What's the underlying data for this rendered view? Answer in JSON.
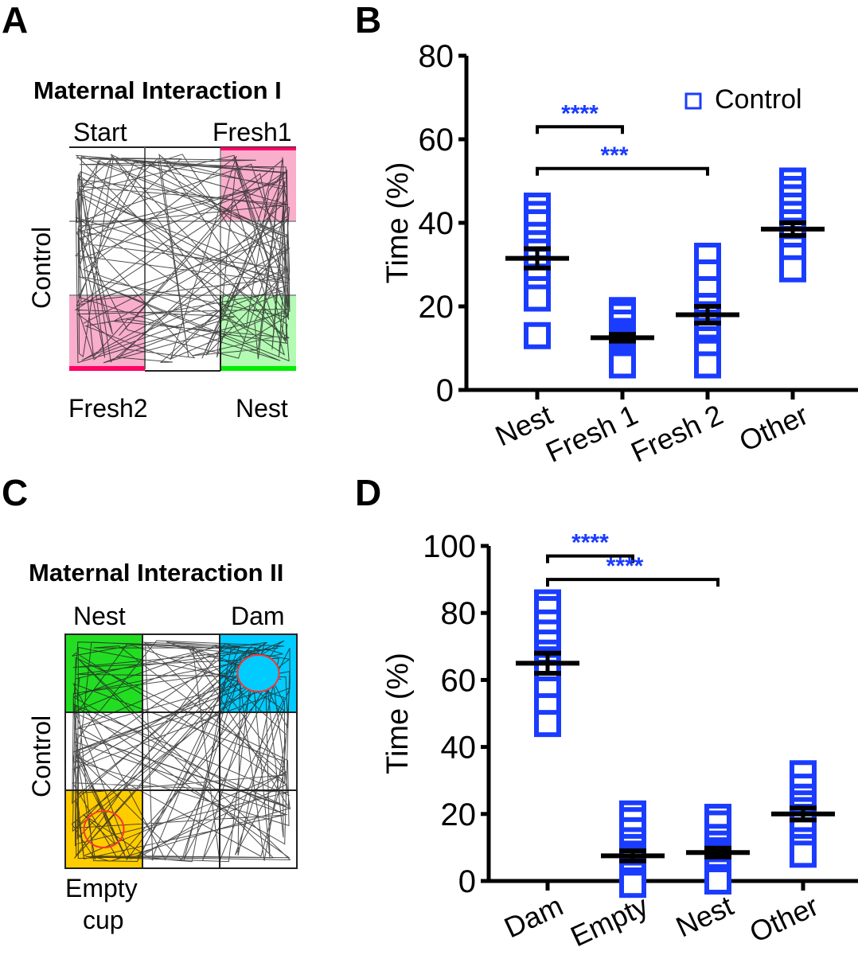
{
  "panels": {
    "A": {
      "letter": "A",
      "title": "Maternal Interaction I",
      "row_label": "Control",
      "zones": {
        "top_left": "Start",
        "top_right": "Fresh1",
        "bottom_left": "Fresh2",
        "bottom_right": "Nest"
      },
      "colors": {
        "fresh": "#f9aecb",
        "fresh_edge": "#ff0066",
        "nest": "#b3fbb3",
        "nest_edge": "#00ee00"
      }
    },
    "C": {
      "letter": "C",
      "title": "Maternal Interaction II",
      "row_label": "Control",
      "zones": {
        "top_left": "Nest",
        "top_right": "Dam",
        "bottom_left_line1": "Empty",
        "bottom_left_line2": "cup"
      },
      "colors": {
        "nest": "#22dd22",
        "dam": "#00ccff",
        "empty": "#ffcc00",
        "cup_ring": "#ff3333"
      }
    },
    "B": {
      "letter": "B"
    },
    "D": {
      "letter": "D"
    }
  },
  "chart_data": [
    {
      "id": "B",
      "type": "scatter",
      "title": "",
      "xlabel": "",
      "ylabel": "Time (%)",
      "ylim": [
        0,
        80
      ],
      "yticks": [
        0,
        20,
        40,
        60,
        80
      ],
      "categories": [
        "Nest",
        "Fresh 1",
        "Fresh 2",
        "Other"
      ],
      "legend": {
        "label": "Control",
        "position": "top-right"
      },
      "series": [
        {
          "name": "Control",
          "color": "#1a3cff",
          "points": [
            [
              44,
              42,
              40,
              37,
              35,
              33,
              31,
              29,
              27,
              24,
              22,
              13
            ],
            [
              19,
              18,
              16,
              14,
              13,
              12,
              12,
              11,
              10,
              8,
              7,
              6
            ],
            [
              32,
              28,
              24,
              20,
              18,
              16,
              14,
              12,
              10,
              9,
              6
            ],
            [
              50,
              48,
              46,
              44,
              42,
              40,
              38,
              36,
              34,
              32,
              29
            ]
          ],
          "mean": [
            31.5,
            12.5,
            18,
            38.5
          ],
          "sem": [
            2.3,
            0.8,
            2.0,
            1.5
          ]
        }
      ],
      "significance": [
        {
          "from": "Nest",
          "to": "Fresh 1",
          "label": "****",
          "level": 63
        },
        {
          "from": "Nest",
          "to": "Fresh 2",
          "label": "***",
          "level": 53
        }
      ]
    },
    {
      "id": "D",
      "type": "scatter",
      "title": "",
      "xlabel": "",
      "ylabel": "Time (%)",
      "ylim": [
        0,
        100
      ],
      "yticks": [
        0,
        20,
        40,
        60,
        80,
        100
      ],
      "categories": [
        "Dam",
        "Empty",
        "Nest",
        "Other"
      ],
      "series": [
        {
          "name": "Control",
          "color": "#1a3cff",
          "points": [
            [
              83,
              81,
              77,
              74,
              71,
              68,
              66,
              64,
              62,
              57,
              52,
              47
            ],
            [
              20,
              18,
              15,
              12,
              10,
              8,
              7,
              6,
              4,
              2,
              0,
              -1
            ],
            [
              19,
              17,
              13,
              11,
              9,
              8,
              7,
              5,
              3,
              1,
              0
            ],
            [
              32,
              28,
              25,
              23,
              21,
              19,
              17,
              15,
              12,
              10,
              8
            ]
          ],
          "mean": [
            65,
            7.5,
            8.5,
            20
          ],
          "sem": [
            3.0,
            1.5,
            1.3,
            1.8
          ]
        }
      ],
      "significance": [
        {
          "from": "Dam",
          "to": "Empty",
          "label": "****",
          "level": 97
        },
        {
          "from": "Dam",
          "to": "Nest",
          "label": "****",
          "level": 90
        }
      ]
    }
  ]
}
